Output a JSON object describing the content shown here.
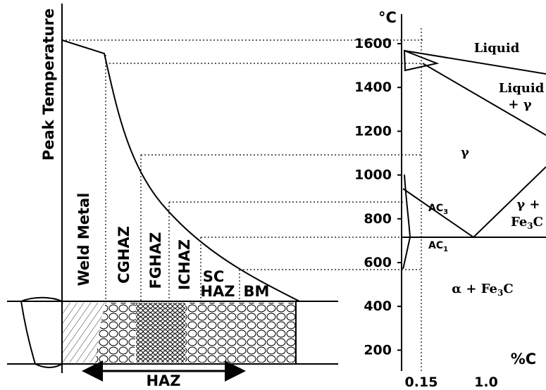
{
  "left_panel": {
    "y_axis_label": "Peak Temperature",
    "zones": [
      "Weld Metal",
      "CGHAZ",
      "FGHAZ",
      "ICHAZ"
    ],
    "sc_haz": [
      "SC",
      "HAZ"
    ],
    "bm": "BM",
    "haz_arrow_label": "HAZ"
  },
  "phase_diagram": {
    "y_unit": "°C",
    "x_unit": "%C",
    "yticks": [
      "1600",
      "1400",
      "1200",
      "1000",
      "800",
      "600",
      "400",
      "200"
    ],
    "xticks": [
      "0.15",
      "1.0"
    ],
    "regions": {
      "liquid": "Liquid",
      "liquid_gamma": [
        "Liquid",
        "+ γ"
      ],
      "gamma": "γ",
      "gamma_fe3c": {
        "line1": "γ +",
        "fe": "Fe",
        "sub": "3",
        "c": "C"
      },
      "alpha_fe3c": {
        "pre": "α + Fe",
        "sub": "3",
        "post": "C"
      },
      "ac3": {
        "base": "AC",
        "sub": "3"
      },
      "ac1": {
        "base": "AC",
        "sub": "1"
      }
    }
  }
}
